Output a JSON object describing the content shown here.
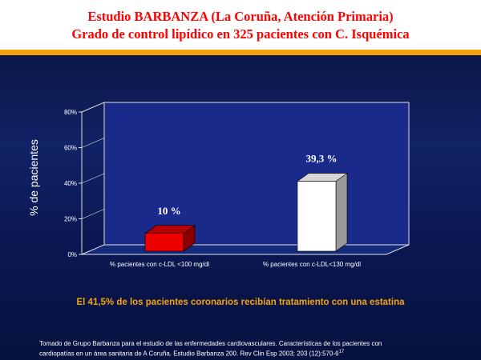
{
  "title": {
    "line1": "Estudio BARBANZA (La Coruña, Atención Primaria)",
    "line2": "Grado de control lipídico en 325 pacientes con C. Isquémica"
  },
  "summary": "El 41,5% de los pacientes coronarios recibían tratamiento con una estatina",
  "source": {
    "line1": "Tomado de Grupo Barbanza para el estudio de las enfermedades cardiovasculares. Características de los pacientes con",
    "line2": "cardiopatías en un área sanitaria de A Coruña. Estudio Barbanza 200. Rev Clin Esp 2003; 203 (12):570-6",
    "superscript": "17"
  },
  "colors": {
    "title_text": "#ff0000",
    "title_rule": "#f5a30a",
    "summary_text": "#f5a30a",
    "bar1": "#ee0000",
    "bar2": "#ffffff"
  },
  "chart_data": {
    "type": "bar",
    "categories": [
      "% pacientes con c-LDL <100 mg/dl",
      "% pacientes con c-LDL<130 mg/dl"
    ],
    "values": [
      10,
      39.3
    ],
    "value_labels": [
      "10 %",
      "39,3 %"
    ],
    "ylabel": "% de pacientes",
    "ylim": [
      0,
      80
    ],
    "yticks": [
      0,
      20,
      40,
      60,
      80
    ],
    "ytick_labels": [
      "0%",
      "20%",
      "40%",
      "60%",
      "80%"
    ],
    "grid": false,
    "style": "3d"
  }
}
